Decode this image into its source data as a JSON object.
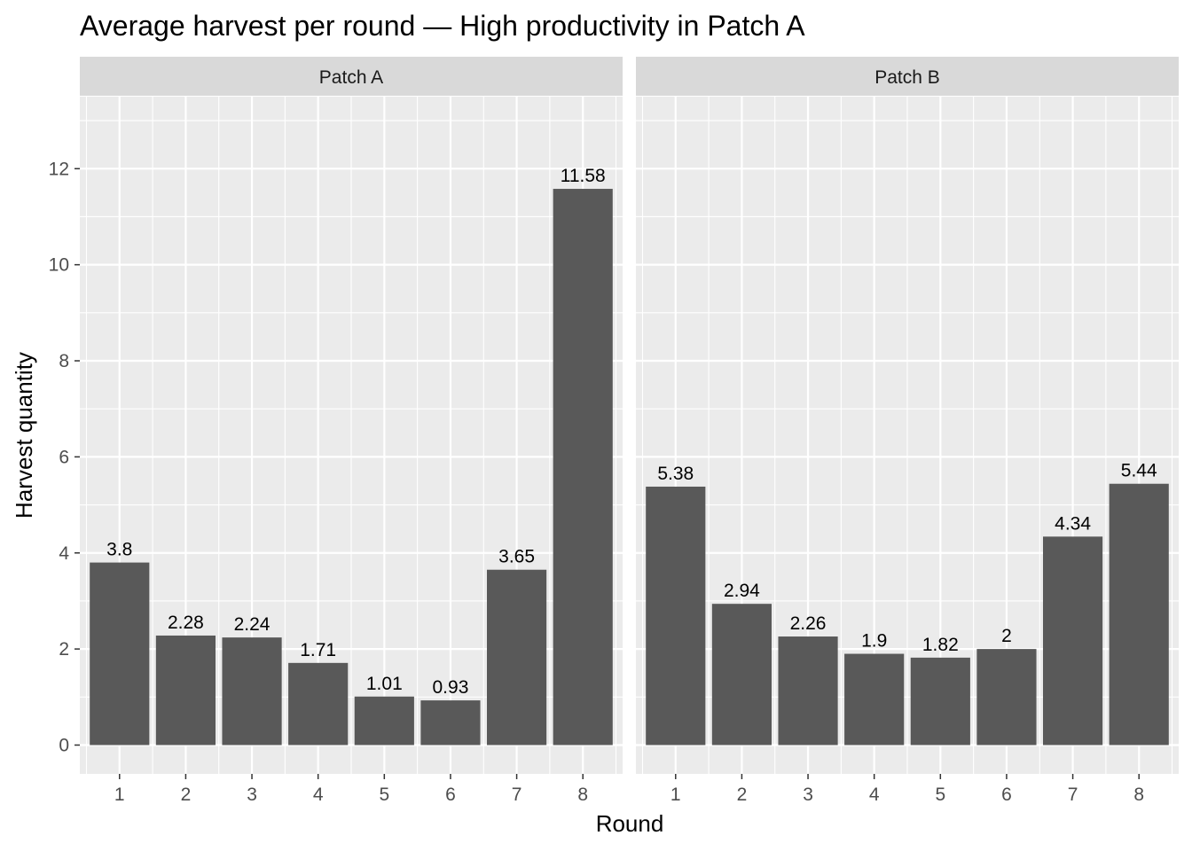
{
  "chart_data": {
    "type": "bar",
    "title": "Average harvest per round — High productivity in Patch A",
    "xlabel": "Round",
    "ylabel": "Harvest quantity",
    "ylim": [
      -0.6,
      13.5
    ],
    "yticks": [
      0,
      2,
      4,
      6,
      8,
      10,
      12
    ],
    "grid": true,
    "panels": [
      {
        "name": "Patch A",
        "categories": [
          "1",
          "2",
          "3",
          "4",
          "5",
          "6",
          "7",
          "8"
        ],
        "values": [
          3.8,
          2.28,
          2.24,
          1.71,
          1.01,
          0.93,
          3.65,
          11.58
        ],
        "labels": [
          "3.8",
          "2.28",
          "2.24",
          "1.71",
          "1.01",
          "0.93",
          "3.65",
          "11.58"
        ]
      },
      {
        "name": "Patch B",
        "categories": [
          "1",
          "2",
          "3",
          "4",
          "5",
          "6",
          "7",
          "8"
        ],
        "values": [
          5.38,
          2.94,
          2.26,
          1.9,
          1.82,
          2,
          4.34,
          5.44
        ],
        "labels": [
          "5.38",
          "2.94",
          "2.26",
          "1.9",
          "1.82",
          "2",
          "4.34",
          "5.44"
        ]
      }
    ],
    "colors": {
      "bar": "#595959",
      "panel_bg": "#ebebeb",
      "strip_bg": "#d9d9d9",
      "grid": "#ffffff",
      "text": "#000000",
      "tick_text": "#4d4d4d"
    }
  }
}
